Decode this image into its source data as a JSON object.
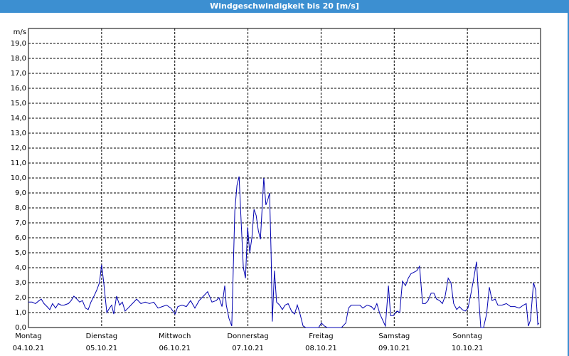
{
  "chart_data": {
    "type": "line",
    "title": "Windgeschwindigkeit bis 20 [m/s]",
    "y_unit": "m/s",
    "xlim": [
      0,
      168
    ],
    "ylim": [
      0,
      20
    ],
    "xticks": [
      {
        "value": 0,
        "label": "Montag",
        "sublabel": "04.10.21"
      },
      {
        "value": 24,
        "label": "Dienstag",
        "sublabel": "05.10.21"
      },
      {
        "value": 48,
        "label": "Mittwoch",
        "sublabel": "06.10.21"
      },
      {
        "value": 72,
        "label": "Donnerstag",
        "sublabel": "07.10.21"
      },
      {
        "value": 96,
        "label": "Freitag",
        "sublabel": "08.10.21"
      },
      {
        "value": 120,
        "label": "Samstag",
        "sublabel": "09.10.21"
      },
      {
        "value": 144,
        "label": "Sonntag",
        "sublabel": "10.10.21"
      }
    ],
    "yticks": [
      {
        "value": 0,
        "label": "0,0"
      },
      {
        "value": 1,
        "label": "1,0"
      },
      {
        "value": 2,
        "label": "2,0"
      },
      {
        "value": 3,
        "label": "3,0"
      },
      {
        "value": 4,
        "label": "4,0"
      },
      {
        "value": 5,
        "label": "5,0"
      },
      {
        "value": 6,
        "label": "6,0"
      },
      {
        "value": 7,
        "label": "7,0"
      },
      {
        "value": 8,
        "label": "8,0"
      },
      {
        "value": 9,
        "label": "9,0"
      },
      {
        "value": 10,
        "label": "10,0"
      },
      {
        "value": 11,
        "label": "11,0"
      },
      {
        "value": 12,
        "label": "12,0"
      },
      {
        "value": 13,
        "label": "13,0"
      },
      {
        "value": 14,
        "label": "14,0"
      },
      {
        "value": 15,
        "label": "15,0"
      },
      {
        "value": 16,
        "label": "16,0"
      },
      {
        "value": 17,
        "label": "17,0"
      },
      {
        "value": 18,
        "label": "18,0"
      },
      {
        "value": 19,
        "label": "19,0"
      }
    ],
    "grid": true,
    "series": [
      {
        "color": "#0000b0",
        "x": [
          0,
          1.2,
          2.3,
          3.5,
          4.2,
          5.1,
          6.1,
          7.0,
          7.9,
          8.9,
          9.8,
          10.7,
          11.7,
          13.1,
          14.0,
          14.9,
          15.9,
          16.8,
          17.7,
          18.7,
          19.6,
          20.5,
          21.5,
          22.4,
          23.3,
          24.0,
          24.7,
          25.7,
          26.6,
          27.3,
          28.0,
          28.9,
          29.9,
          30.8,
          31.7,
          32.7,
          34.1,
          35.5,
          36.9,
          38.3,
          39.7,
          41.1,
          42.5,
          43.9,
          45.3,
          46.7,
          48.1,
          49.0,
          50.4,
          51.8,
          53.2,
          54.6,
          56.0,
          57.4,
          58.8,
          60.2,
          61.6,
          62.5,
          63.5,
          64.4,
          64.9,
          65.8,
          66.7,
          67.7,
          68.4,
          69.1,
          69.8,
          70.5,
          71.2,
          71.9,
          72.6,
          73.3,
          74.0,
          74.7,
          75.4,
          76.1,
          76.8,
          77.2,
          77.9,
          78.6,
          79.1,
          79.6,
          80.0,
          80.7,
          81.4,
          82.4,
          83.3,
          84.2,
          85.2,
          86.3,
          87.3,
          88.2,
          89.1,
          90.1,
          91.0,
          93.3,
          95.2,
          96.1,
          97.1,
          98.0,
          100.3,
          102.7,
          104.1,
          105.0,
          105.9,
          107.3,
          108.7,
          109.7,
          111.1,
          112.5,
          113.4,
          114.3,
          115.3,
          116.2,
          117.1,
          118.1,
          118.8,
          119.7,
          120.9,
          121.8,
          122.7,
          123.7,
          124.6,
          125.5,
          126.5,
          127.4,
          128.3,
          129.3,
          130.2,
          131.1,
          132.1,
          133.0,
          133.9,
          134.9,
          135.8,
          136.7,
          137.7,
          138.6,
          139.5,
          140.5,
          141.4,
          142.3,
          143.3,
          144.2,
          145.1,
          146.1,
          147.0,
          147.7,
          148.4,
          149.3,
          150.3,
          151.2,
          152.1,
          153.1,
          154.0,
          155.4,
          156.8,
          158.2,
          159.6,
          161.0,
          162.4,
          163.3,
          164.0,
          164.7,
          165.7,
          166.4,
          167.1,
          167.5
        ],
        "values": [
          1.7,
          1.7,
          1.6,
          1.8,
          1.9,
          1.6,
          1.4,
          1.2,
          1.6,
          1.3,
          1.6,
          1.5,
          1.5,
          1.6,
          1.8,
          2.1,
          1.9,
          1.7,
          1.8,
          1.3,
          1.2,
          1.7,
          2.1,
          2.5,
          3.0,
          4.2,
          3.0,
          1.0,
          1.3,
          1.5,
          0.9,
          2.1,
          1.5,
          1.7,
          1.1,
          1.3,
          1.6,
          1.9,
          1.6,
          1.7,
          1.6,
          1.7,
          1.3,
          1.4,
          1.5,
          1.3,
          0.9,
          1.4,
          1.5,
          1.4,
          1.8,
          1.3,
          1.8,
          2.1,
          2.4,
          1.7,
          1.8,
          2.0,
          1.4,
          2.8,
          1.5,
          0.6,
          0.1,
          7.8,
          9.5,
          10.1,
          7.0,
          4.0,
          3.3,
          6.7,
          5.0,
          6.0,
          7.9,
          7.5,
          6.5,
          5.9,
          8.5,
          10.0,
          8.2,
          8.6,
          9.0,
          5.0,
          0.4,
          3.8,
          1.7,
          1.5,
          1.2,
          1.5,
          1.6,
          1.1,
          0.9,
          1.5,
          0.9,
          0.1,
          0,
          0,
          0,
          0.3,
          0.1,
          0,
          0,
          0,
          0.3,
          1.3,
          1.5,
          1.5,
          1.5,
          1.3,
          1.5,
          1.4,
          1.2,
          1.6,
          0.9,
          0.5,
          0.1,
          2.8,
          0.8,
          0.8,
          1.1,
          1.0,
          3.1,
          2.8,
          3.3,
          3.6,
          3.7,
          3.8,
          4.1,
          1.6,
          1.6,
          1.8,
          2.3,
          2.3,
          1.9,
          1.8,
          1.6,
          2.1,
          3.3,
          3.0,
          1.6,
          1.2,
          1.4,
          1.2,
          1.1,
          1.3,
          2.2,
          3.3,
          4.4,
          2.0,
          0,
          0,
          0.9,
          2.7,
          1.8,
          1.9,
          1.5,
          1.5,
          1.6,
          1.4,
          1.4,
          1.3,
          1.5,
          1.6,
          0.1,
          0.5,
          3.0,
          2.5,
          0.2,
          0.3
        ]
      }
    ]
  }
}
